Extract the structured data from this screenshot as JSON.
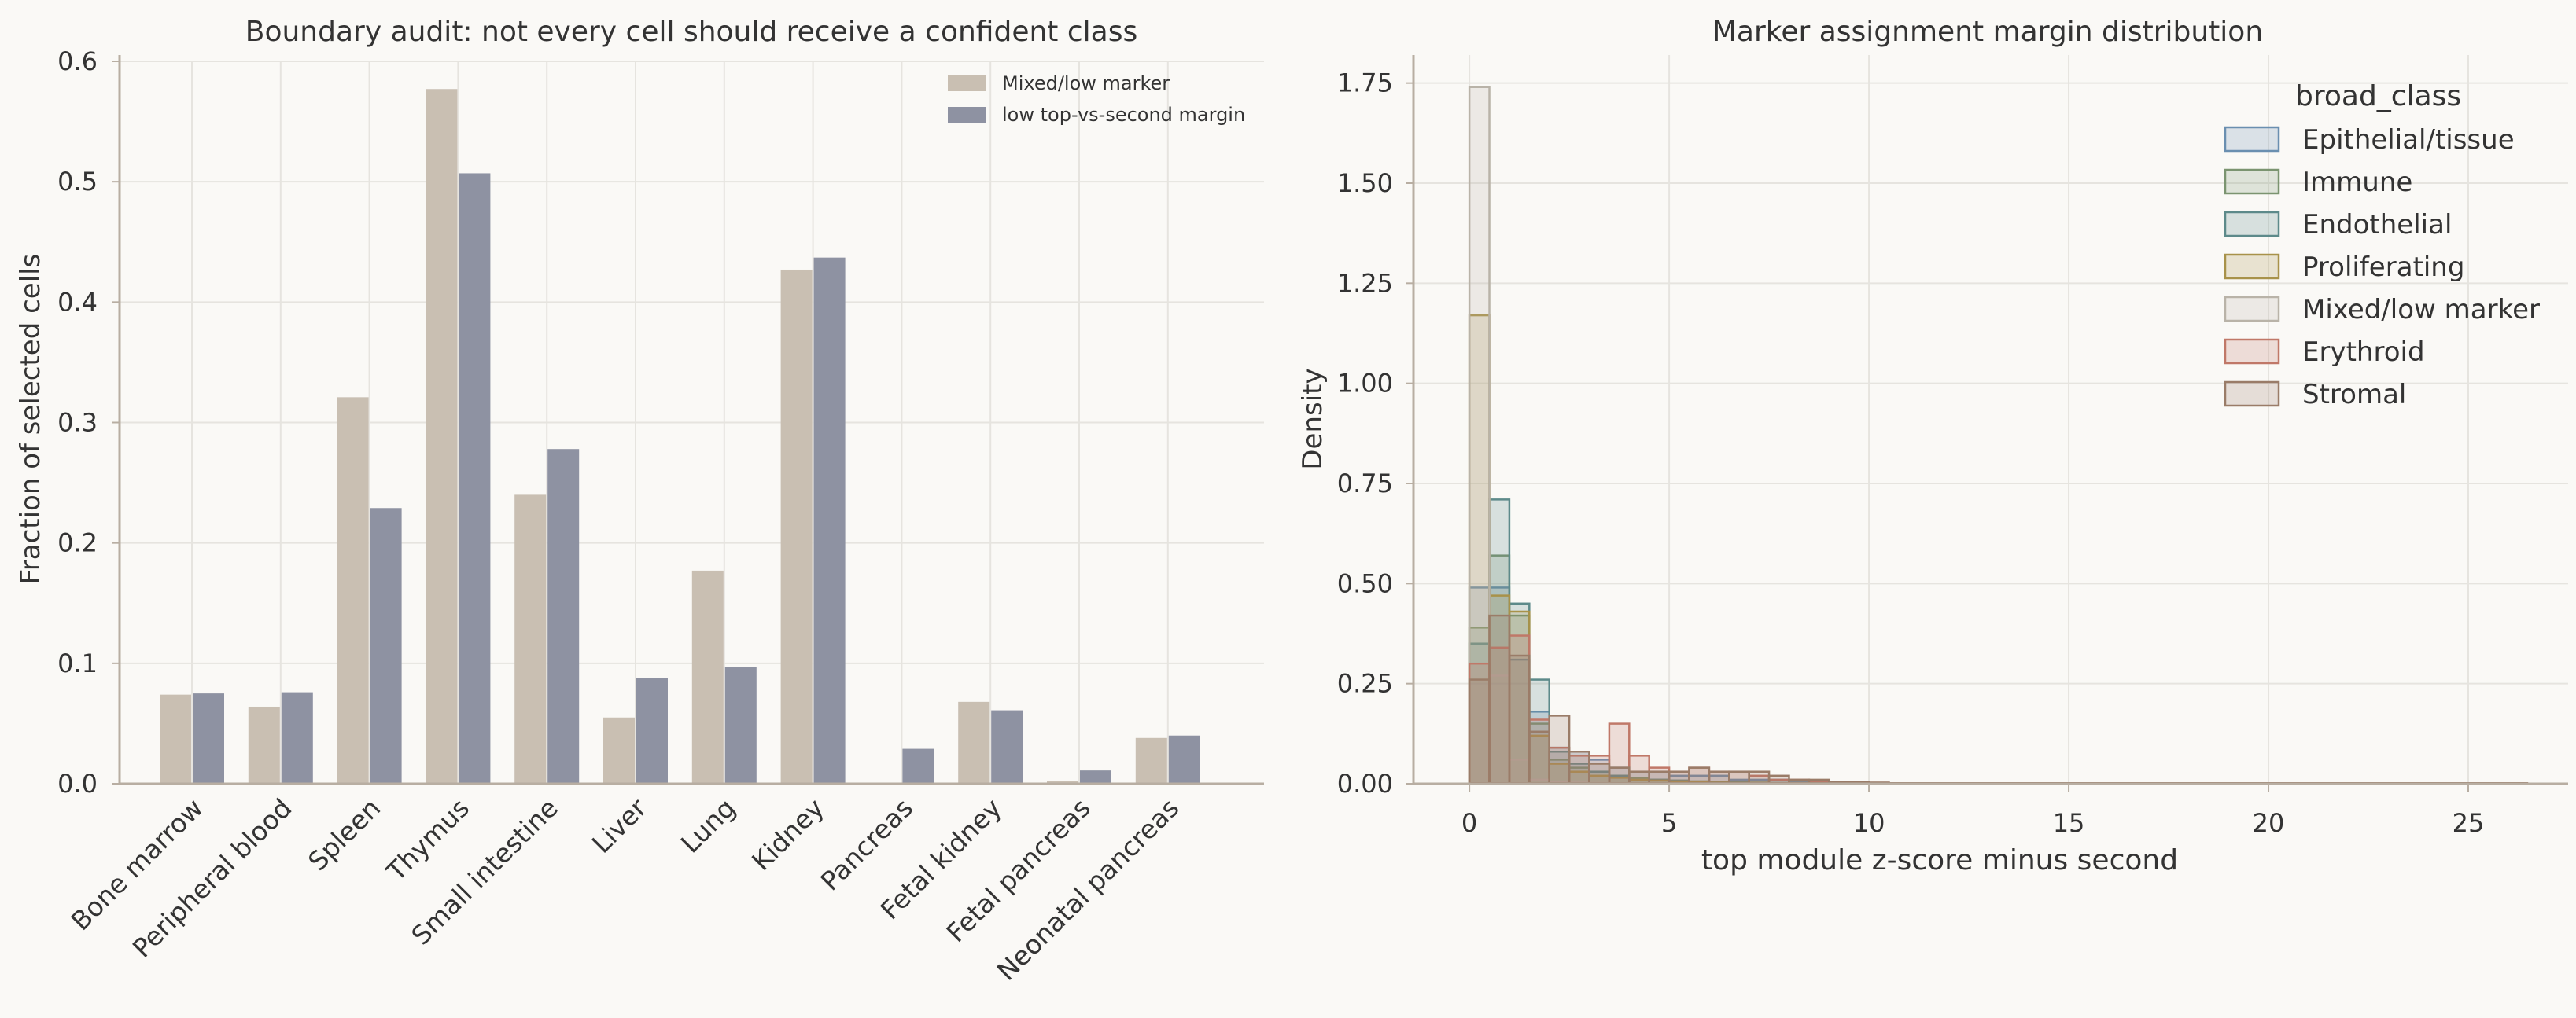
{
  "colors": {
    "background": "#faf9f6",
    "grid": "#e6e4df",
    "axis": "#b8aea2",
    "mixed_low_marker_bar": "#c9bfb2",
    "low_margin_bar": "#8e92a2"
  },
  "chart_data": [
    {
      "type": "bar",
      "title": "Boundary audit: not every cell should receive a confident class",
      "xlabel": "",
      "ylabel": "Fraction of selected cells",
      "ylim": [
        0,
        0.6
      ],
      "yticks": [
        "0.0",
        "0.1",
        "0.2",
        "0.3",
        "0.4",
        "0.5",
        "0.6"
      ],
      "grid": true,
      "legend_position": "top-right",
      "categories": [
        "Bone marrow",
        "Peripheral blood",
        "Spleen",
        "Thymus",
        "Small intestine",
        "Liver",
        "Lung",
        "Kidney",
        "Pancreas",
        "Fetal kidney",
        "Fetal pancreas",
        "Neonatal pancreas"
      ],
      "series": [
        {
          "name": "Mixed/low marker",
          "color": "#c9bfb2",
          "values": [
            0.074,
            0.064,
            0.321,
            0.577,
            0.24,
            0.055,
            0.177,
            0.427,
            0.0,
            0.068,
            0.002,
            0.038
          ]
        },
        {
          "name": "low top-vs-second margin",
          "color": "#8e92a2",
          "values": [
            0.075,
            0.076,
            0.229,
            0.507,
            0.278,
            0.088,
            0.097,
            0.437,
            0.029,
            0.061,
            0.011,
            0.04
          ]
        }
      ]
    },
    {
      "type": "histogram",
      "title": "Marker assignment margin distribution",
      "xlabel": "top module z-score minus second",
      "ylabel": "Density",
      "xlim": [
        -1.4,
        27.5
      ],
      "ylim": [
        0,
        1.82
      ],
      "xticks": [
        "0",
        "5",
        "10",
        "15",
        "20",
        "25"
      ],
      "yticks": [
        "0.00",
        "0.25",
        "0.50",
        "0.75",
        "1.00",
        "1.25",
        "1.50",
        "1.75"
      ],
      "grid": true,
      "bin_width": 0.5,
      "bin_start": 0,
      "legend_title": "broad_class",
      "legend_position": "top-right",
      "series": [
        {
          "name": "Epithelial/tissue",
          "color": "#6a8fb0",
          "density": [
            0.49,
            0.49,
            0.31,
            0.18,
            0.09,
            0.08,
            0.06,
            0.04,
            0.03,
            0.03,
            0.02,
            0.02,
            0.02,
            0.01,
            0.01,
            0.01,
            0.005,
            0.005,
            0.005,
            0.003,
            0.002
          ]
        },
        {
          "name": "Immune",
          "color": "#7b9470",
          "density": [
            0.39,
            0.57,
            0.42,
            0.15,
            0.06,
            0.04,
            0.03,
            0.02,
            0.015,
            0.01,
            0.008,
            0.006,
            0.005,
            0.004,
            0.003,
            0.002,
            0.002,
            0.001,
            0.001,
            0.001,
            0.001
          ]
        },
        {
          "name": "Endothelial",
          "color": "#5d8a8a",
          "density": [
            0.35,
            0.71,
            0.45,
            0.26,
            0.08,
            0.05,
            0.03,
            0.02,
            0.01,
            0.01,
            0.008,
            0.005,
            0.004,
            0.003,
            0.002,
            0.002,
            0.001,
            0.001,
            0.001,
            0.001,
            0.0
          ]
        },
        {
          "name": "Proliferating",
          "color": "#a8924a",
          "density": [
            1.17,
            0.47,
            0.43,
            0.12,
            0.05,
            0.03,
            0.02,
            0.015,
            0.01,
            0.008,
            0.006,
            0.004,
            0.003,
            0.002,
            0.002,
            0.001,
            0.001,
            0.001,
            0.001,
            0.0,
            0.0
          ]
        },
        {
          "name": "Mixed/low marker",
          "color": "#b9b3a8",
          "density": [
            1.74,
            0.27,
            0.06,
            0.01,
            0.005,
            0.003,
            0.002,
            0.001,
            0.001,
            0.0,
            0.0,
            0.0,
            0.0,
            0.0,
            0.0,
            0.0,
            0.0,
            0.0,
            0.0,
            0.0,
            0.0
          ]
        },
        {
          "name": "Erythroid",
          "color": "#c07868",
          "density": [
            0.3,
            0.34,
            0.37,
            0.16,
            0.09,
            0.07,
            0.07,
            0.15,
            0.07,
            0.04,
            0.03,
            0.04,
            0.03,
            0.03,
            0.02,
            0.01,
            0.01,
            0.005,
            0.005,
            0.003,
            0.002
          ]
        },
        {
          "name": "Stromal",
          "color": "#9a7c68",
          "density": [
            0.26,
            0.42,
            0.32,
            0.13,
            0.17,
            0.08,
            0.05,
            0.04,
            0.03,
            0.03,
            0.03,
            0.04,
            0.03,
            0.03,
            0.03,
            0.02,
            0.01,
            0.01,
            0.005,
            0.005,
            0.003
          ]
        }
      ]
    }
  ]
}
